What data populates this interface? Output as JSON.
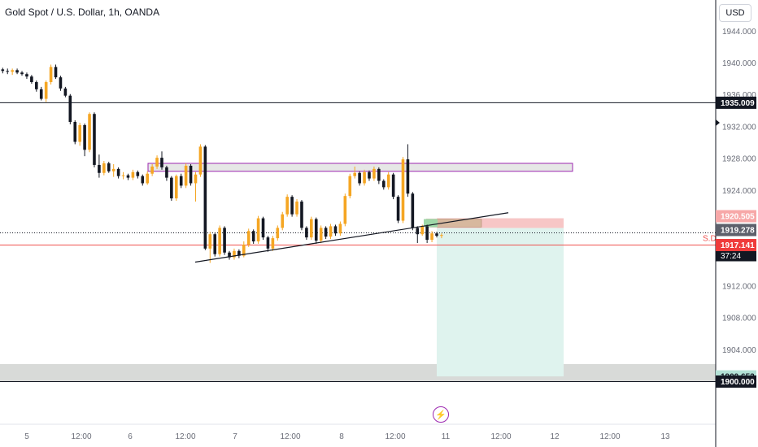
{
  "header": {
    "symbol_title": "Gold Spot / U.S. Dollar, 1h, OANDA",
    "currency_button": "USD"
  },
  "events": {
    "icon": "lightning-icon"
  },
  "colors": {
    "bull": "#f5a623",
    "bear": "#131722",
    "zone_border": "#9c27b0",
    "zone_fill": "#d8dad8",
    "stop_fill": "#f7c6c6",
    "target_fill": "#dff3ee",
    "sd_line": "#ef5350"
  },
  "chart_data": {
    "type": "candlestick",
    "x_tick_labels": [
      "5",
      "12:00",
      "6",
      "12:00",
      "7",
      "12:00",
      "8",
      "12:00",
      "11",
      "12:00",
      "12",
      "12:00",
      "13"
    ],
    "y_tick_labels": [
      "1944.000",
      "1940.000",
      "1936.000",
      "1932.000",
      "1928.000",
      "1924.000",
      "1912.000",
      "1908.000",
      "1904.000"
    ],
    "ylim": [
      1898.4,
      1947.0
    ],
    "price_labels": [
      {
        "label": "1935.009",
        "value": 1935.009,
        "style": "black"
      },
      {
        "label": "1920.505",
        "value": 1920.505,
        "style": "red-light"
      },
      {
        "label": "1919.278",
        "value": 1919.278,
        "style": "gray"
      },
      {
        "label": "1918.675",
        "value": 1918.675,
        "style": "black",
        "sub": "37:24"
      },
      {
        "label": "1917.141",
        "value": 1917.141,
        "style": "red"
      },
      {
        "label": "1900.652",
        "value": 1900.652,
        "style": "teal"
      },
      {
        "label": "1900.000",
        "value": 1900.0,
        "style": "black"
      }
    ],
    "sd_label": "S.D",
    "horizontal_lines": [
      {
        "value": 1935.009,
        "style": "solid-black"
      },
      {
        "value": 1917.141,
        "style": "solid-red"
      },
      {
        "value": 1900.0,
        "style": "solid-black"
      },
      {
        "value": 1918.675,
        "style": "dotted-black"
      }
    ],
    "supply_zone": {
      "top": 1927.4,
      "bottom": 1926.4,
      "x_start": 182,
      "x_end": 704
    },
    "demand_zone": {
      "top": 1902.2,
      "bottom": 1900.0
    },
    "trendline": {
      "from": [
        240,
        1915.0
      ],
      "to": [
        625,
        1921.2
      ]
    },
    "position": {
      "entry": 1919.278,
      "stop": 1920.505,
      "target": 1900.652,
      "x_start": 537,
      "x_end": 693
    },
    "candles": [
      [
        1939.2,
        1939.4,
        1938.7,
        1939.0
      ],
      [
        1939.0,
        1939.3,
        1938.6,
        1938.9
      ],
      [
        1938.9,
        1939.3,
        1938.5,
        1939.1
      ],
      [
        1939.1,
        1939.3,
        1938.6,
        1938.8
      ],
      [
        1938.8,
        1939.0,
        1938.4,
        1938.6
      ],
      [
        1938.6,
        1938.8,
        1938.0,
        1938.3
      ],
      [
        1938.3,
        1938.5,
        1937.4,
        1937.6
      ],
      [
        1937.6,
        1937.8,
        1936.4,
        1936.7
      ],
      [
        1936.7,
        1937.0,
        1935.3,
        1935.5
      ],
      [
        1935.5,
        1937.8,
        1935.1,
        1937.6
      ],
      [
        1937.6,
        1939.8,
        1937.3,
        1939.5
      ],
      [
        1939.5,
        1939.8,
        1938.0,
        1938.2
      ],
      [
        1938.2,
        1938.4,
        1936.5,
        1936.8
      ],
      [
        1936.8,
        1937.0,
        1935.7,
        1935.9
      ],
      [
        1935.9,
        1936.1,
        1932.3,
        1932.6
      ],
      [
        1932.6,
        1932.8,
        1929.8,
        1930.1
      ],
      [
        1930.1,
        1932.5,
        1929.6,
        1932.2
      ],
      [
        1932.2,
        1932.4,
        1928.3,
        1929.1
      ],
      [
        1929.1,
        1933.8,
        1928.8,
        1933.6
      ],
      [
        1933.6,
        1933.8,
        1926.9,
        1927.2
      ],
      [
        1927.2,
        1928.5,
        1925.6,
        1926.2
      ],
      [
        1926.2,
        1927.7,
        1925.9,
        1927.4
      ],
      [
        1927.4,
        1927.6,
        1926.2,
        1926.4
      ],
      [
        1926.4,
        1927.3,
        1925.7,
        1926.7
      ],
      [
        1926.7,
        1926.9,
        1925.5,
        1925.8
      ],
      [
        1925.8,
        1926.3,
        1925.4,
        1925.9
      ],
      [
        1925.9,
        1926.1,
        1925.3,
        1925.6
      ],
      [
        1925.6,
        1926.6,
        1925.3,
        1926.3
      ],
      [
        1926.3,
        1926.5,
        1925.5,
        1925.8
      ],
      [
        1925.8,
        1926.0,
        1924.6,
        1924.9
      ],
      [
        1924.9,
        1926.4,
        1924.7,
        1926.1
      ],
      [
        1926.1,
        1927.3,
        1925.8,
        1927.0
      ],
      [
        1927.0,
        1928.4,
        1926.7,
        1928.1
      ],
      [
        1928.1,
        1928.9,
        1926.6,
        1926.9
      ],
      [
        1926.9,
        1927.1,
        1925.2,
        1925.6
      ],
      [
        1925.6,
        1925.8,
        1922.7,
        1923.0
      ],
      [
        1923.0,
        1926.0,
        1922.7,
        1925.8
      ],
      [
        1925.8,
        1926.1,
        1924.3,
        1924.6
      ],
      [
        1924.6,
        1927.4,
        1924.3,
        1927.1
      ],
      [
        1927.1,
        1927.3,
        1924.6,
        1924.9
      ],
      [
        1924.9,
        1926.3,
        1922.6,
        1926.0
      ],
      [
        1926.0,
        1929.8,
        1925.7,
        1929.5
      ],
      [
        1929.5,
        1929.7,
        1916.5,
        1916.7
      ],
      [
        1916.7,
        1918.8,
        1914.9,
        1918.5
      ],
      [
        1918.5,
        1918.7,
        1915.7,
        1916.0
      ],
      [
        1916.0,
        1919.6,
        1915.7,
        1919.3
      ],
      [
        1919.3,
        1919.5,
        1915.9,
        1916.2
      ],
      [
        1916.2,
        1916.4,
        1915.3,
        1915.6
      ],
      [
        1915.6,
        1916.7,
        1915.3,
        1916.4
      ],
      [
        1916.4,
        1916.6,
        1915.5,
        1915.8
      ],
      [
        1915.8,
        1917.6,
        1915.6,
        1917.2
      ],
      [
        1917.2,
        1919.2,
        1916.9,
        1918.9
      ],
      [
        1918.9,
        1919.1,
        1917.3,
        1917.6
      ],
      [
        1917.6,
        1920.8,
        1917.3,
        1920.5
      ],
      [
        1920.5,
        1920.7,
        1917.8,
        1918.1
      ],
      [
        1918.1,
        1918.3,
        1916.3,
        1916.7
      ],
      [
        1916.7,
        1918.3,
        1916.4,
        1918.0
      ],
      [
        1918.0,
        1919.6,
        1917.7,
        1919.3
      ],
      [
        1919.3,
        1921.3,
        1919.0,
        1921.0
      ],
      [
        1921.0,
        1923.5,
        1920.7,
        1923.2
      ],
      [
        1923.2,
        1923.4,
        1920.7,
        1921.0
      ],
      [
        1921.0,
        1922.9,
        1920.7,
        1922.6
      ],
      [
        1922.6,
        1922.8,
        1919.0,
        1919.3
      ],
      [
        1919.3,
        1919.5,
        1917.8,
        1918.1
      ],
      [
        1918.1,
        1920.7,
        1917.8,
        1920.4
      ],
      [
        1920.4,
        1920.6,
        1917.3,
        1917.7
      ],
      [
        1917.7,
        1919.6,
        1917.4,
        1919.3
      ],
      [
        1919.3,
        1919.5,
        1917.9,
        1918.2
      ],
      [
        1918.2,
        1919.8,
        1917.9,
        1919.5
      ],
      [
        1919.5,
        1919.7,
        1918.3,
        1918.6
      ],
      [
        1918.6,
        1920.1,
        1918.3,
        1919.8
      ],
      [
        1919.8,
        1923.6,
        1919.5,
        1923.3
      ],
      [
        1923.3,
        1926.1,
        1923.0,
        1925.8
      ],
      [
        1925.8,
        1927.0,
        1925.5,
        1926.2
      ],
      [
        1926.2,
        1926.4,
        1924.6,
        1924.9
      ],
      [
        1924.9,
        1926.6,
        1924.6,
        1926.3
      ],
      [
        1926.3,
        1926.5,
        1925.2,
        1925.5
      ],
      [
        1925.5,
        1927.0,
        1925.2,
        1926.7
      ],
      [
        1926.7,
        1926.9,
        1924.8,
        1925.2
      ],
      [
        1925.2,
        1925.4,
        1924.1,
        1924.4
      ],
      [
        1924.4,
        1926.3,
        1924.1,
        1926.0
      ],
      [
        1926.0,
        1926.2,
        1922.9,
        1923.2
      ],
      [
        1923.2,
        1923.4,
        1919.9,
        1920.2
      ],
      [
        1920.2,
        1928.2,
        1919.9,
        1927.9
      ],
      [
        1927.9,
        1929.8,
        1923.2,
        1923.6
      ],
      [
        1923.6,
        1923.8,
        1919.0,
        1919.3
      ],
      [
        1919.3,
        1919.5,
        1917.4,
        1918.5
      ],
      [
        1918.5,
        1919.7,
        1918.3,
        1919.5
      ],
      [
        1919.5,
        1919.7,
        1917.4,
        1917.8
      ],
      [
        1917.8,
        1918.9,
        1917.5,
        1918.6
      ],
      [
        1918.6,
        1918.8,
        1918.1,
        1918.3
      ],
      [
        1918.3,
        1918.6,
        1918.0,
        1918.4
      ]
    ]
  }
}
